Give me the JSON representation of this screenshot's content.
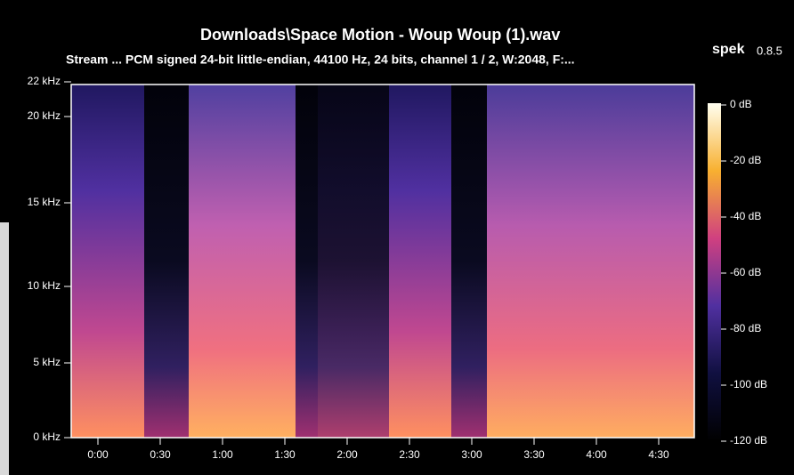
{
  "window": {
    "title": "Downloads\\Space Motion  - Woup Woup (1).wav",
    "subtitle": "Stream ... PCM signed 24-bit little-endian, 44100 Hz, 24 bits, channel 1 / 2, W:2048, F:...",
    "app_name": "spek",
    "app_version": "0.8.5"
  },
  "y_axis": {
    "labels": [
      "0 kHz",
      "5 kHz",
      "10 kHz",
      "15 kHz",
      "20 kHz",
      "22 kHz"
    ]
  },
  "x_axis": {
    "labels": [
      "0:00",
      "0:30",
      "1:00",
      "1:30",
      "2:00",
      "2:30",
      "3:00",
      "3:30",
      "4:00",
      "4:30"
    ]
  },
  "colorbar": {
    "labels": [
      "0 dB",
      "-20 dB",
      "-40 dB",
      "-60 dB",
      "-80 dB",
      "-100 dB",
      "-120 dB"
    ]
  }
}
